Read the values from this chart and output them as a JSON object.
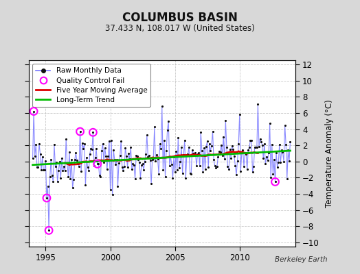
{
  "title": "COLUMBUS BASIN",
  "subtitle": "37.433 N, 108.017 W (United States)",
  "ylabel": "Temperature Anomaly (°C)",
  "credit": "Berkeley Earth",
  "xlim": [
    1993.7,
    2014.3
  ],
  "ylim": [
    -10.5,
    12.5
  ],
  "yticks": [
    -10,
    -8,
    -6,
    -4,
    -2,
    0,
    2,
    4,
    6,
    8,
    10,
    12
  ],
  "xticks": [
    1995,
    2000,
    2005,
    2010
  ],
  "bg_color": "#d8d8d8",
  "plot_bg_color": "#ffffff",
  "raw_line_color": "#7777ff",
  "raw_marker_color": "#111111",
  "qc_fail_color": "#ff00ff",
  "moving_avg_color": "#dd0000",
  "trend_color": "#00bb00",
  "seed": 42,
  "n_months": 240,
  "start_year": 1994.0
}
